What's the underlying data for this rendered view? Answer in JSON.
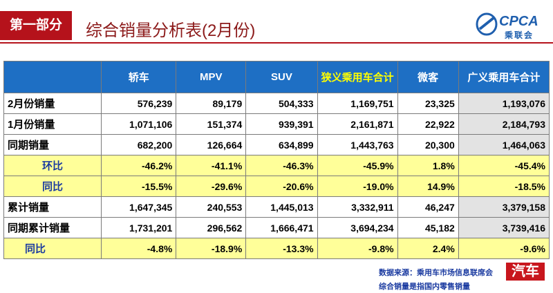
{
  "header": {
    "section": "第一部分",
    "title": "综合销量分析表(2月份)"
  },
  "logo": {
    "name": "CPCA",
    "subtitle": "乘联会"
  },
  "table": {
    "columns": [
      "",
      "轿车",
      "MPV",
      "SUV",
      "狭义乘用车合计",
      "微客",
      "广义乘用车合计"
    ],
    "rows": [
      [
        "2月份销量",
        "576,239",
        "89,179",
        "504,333",
        "1,169,751",
        "23,325",
        "1,193,076"
      ],
      [
        "1月份销量",
        "1,071,106",
        "151,374",
        "939,391",
        "2,161,871",
        "22,922",
        "2,184,793"
      ],
      [
        "同期销量",
        "682,200",
        "126,664",
        "634,899",
        "1,443,763",
        "20,300",
        "1,464,063"
      ],
      [
        "环比",
        "-46.2%",
        "-41.1%",
        "-46.3%",
        "-45.9%",
        "1.8%",
        "-45.4%"
      ],
      [
        "同比",
        "-15.5%",
        "-29.6%",
        "-20.6%",
        "-19.0%",
        "14.9%",
        "-18.5%"
      ],
      [
        "累计销量",
        "1,647,345",
        "240,553",
        "1,445,013",
        "3,332,911",
        "46,247",
        "3,379,158"
      ],
      [
        "同期累计销量",
        "1,731,201",
        "296,562",
        "1,666,471",
        "3,694,234",
        "45,182",
        "3,739,416"
      ],
      [
        "同比",
        "-4.8%",
        "-18.9%",
        "-13.3%",
        "-9.8%",
        "2.4%",
        "-9.6%"
      ]
    ]
  },
  "notes": [
    "数据来源：乘用车市场信息联席会",
    "综合销量是指国内零售销量"
  ],
  "watermark": "汽车"
}
